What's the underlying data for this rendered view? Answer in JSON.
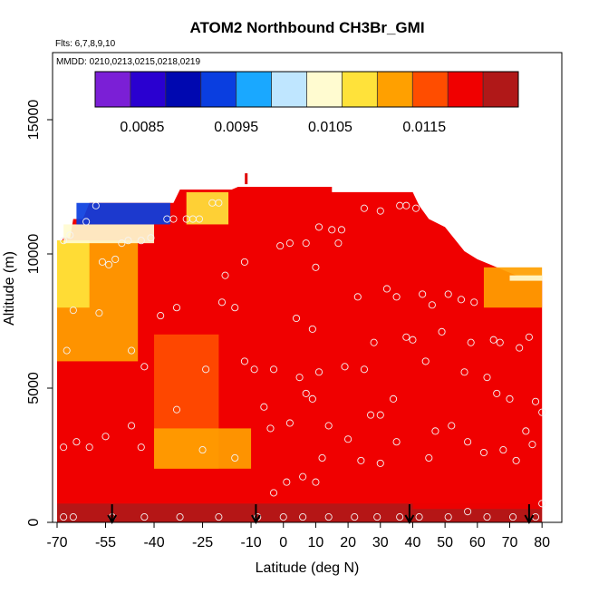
{
  "chart_data": {
    "type": "heatmap",
    "title": "ATOM2 Northbound CH3Br_GMI",
    "subtitle_flights": "Flts: 6,7,8,9,10",
    "subtitle_dates": "MMDD: 0210,0213,0215,0218,0219",
    "xlabel": "Latitude (deg N)",
    "ylabel": "Altitude (m)",
    "xlim": [
      -70,
      85
    ],
    "ylim": [
      0,
      17500
    ],
    "x_ticks": [
      -70,
      -55,
      -40,
      -25,
      -10,
      0,
      10,
      20,
      30,
      40,
      50,
      60,
      70,
      80
    ],
    "x_tick_labels": [
      "-70",
      "-55",
      "-40",
      "-25",
      "-10",
      "0",
      "10",
      "20",
      "30",
      "40",
      "50",
      "60",
      "70",
      "80"
    ],
    "y_ticks": [
      0,
      5000,
      10000,
      15000
    ],
    "y_tick_labels": [
      "0",
      "5000",
      "10000",
      "15000"
    ],
    "colorbar": {
      "min": 0.008,
      "max": 0.0125,
      "tick_values": [
        0.0085,
        0.0095,
        0.0105,
        0.0115
      ],
      "tick_labels": [
        "0.0085",
        "0.0095",
        "0.0105",
        "0.0115"
      ],
      "colors": [
        "#7b1fd6",
        "#2a00d0",
        "#0008b0",
        "#0a3ee0",
        "#1aa8ff",
        "#bfe6ff",
        "#fffbd0",
        "#ffe23a",
        "#ffa000",
        "#ff4d00",
        "#f00000",
        "#b01818"
      ]
    },
    "heatmap_background_value": 0.0119,
    "regions": [
      {
        "x": [
          -70,
          80
        ],
        "y": [
          0,
          700
        ],
        "value": 0.0123
      },
      {
        "x": [
          -40,
          -20
        ],
        "y": [
          2000,
          7000
        ],
        "value": 0.0114
      },
      {
        "x": [
          -40,
          -10
        ],
        "y": [
          2000,
          3500
        ],
        "value": 0.0112
      },
      {
        "x": [
          -70,
          -45
        ],
        "y": [
          6000,
          10500
        ],
        "value": 0.0113
      },
      {
        "x": [
          -70,
          -60
        ],
        "y": [
          8000,
          10500
        ],
        "value": 0.011
      },
      {
        "x": [
          -68,
          -40
        ],
        "y": [
          10400,
          11100
        ],
        "value": 0.0104
      },
      {
        "x": [
          -64,
          -35
        ],
        "y": [
          11100,
          11900
        ],
        "value": 0.0092
      },
      {
        "x": [
          -30,
          -17
        ],
        "y": [
          11100,
          12300
        ],
        "value": 0.0108
      },
      {
        "x": [
          62,
          80
        ],
        "y": [
          8000,
          9500
        ],
        "value": 0.0112
      },
      {
        "x": [
          70,
          80
        ],
        "y": [
          9000,
          9200
        ],
        "value": 0.0104
      },
      {
        "x": [
          40,
          80
        ],
        "y": [
          500,
          4000
        ],
        "value": 0.0121
      }
    ],
    "obs_points": [
      {
        "x": -68,
        "y": 10500
      },
      {
        "x": -66,
        "y": 10700
      },
      {
        "x": -61,
        "y": 11200
      },
      {
        "x": -58,
        "y": 11800
      },
      {
        "x": -56,
        "y": 9700
      },
      {
        "x": -54,
        "y": 9600
      },
      {
        "x": -52,
        "y": 9800
      },
      {
        "x": -50,
        "y": 10400
      },
      {
        "x": -48,
        "y": 10500
      },
      {
        "x": -44,
        "y": 10500
      },
      {
        "x": -41,
        "y": 10600
      },
      {
        "x": -36,
        "y": 11300
      },
      {
        "x": -34,
        "y": 11300
      },
      {
        "x": -30,
        "y": 11300
      },
      {
        "x": -28,
        "y": 11300
      },
      {
        "x": -26,
        "y": 11300
      },
      {
        "x": -22,
        "y": 11900
      },
      {
        "x": -20,
        "y": 11900
      },
      {
        "x": -18,
        "y": 9200
      },
      {
        "x": -12,
        "y": 9700
      },
      {
        "x": -67,
        "y": 6400
      },
      {
        "x": -65,
        "y": 7900
      },
      {
        "x": -57,
        "y": 7800
      },
      {
        "x": -47,
        "y": 6400
      },
      {
        "x": -43,
        "y": 5800
      },
      {
        "x": -38,
        "y": 7700
      },
      {
        "x": -33,
        "y": 8000
      },
      {
        "x": -24,
        "y": 5700
      },
      {
        "x": -19,
        "y": 8200
      },
      {
        "x": -15,
        "y": 8000
      },
      {
        "x": -12,
        "y": 6000
      },
      {
        "x": -9,
        "y": 5700
      },
      {
        "x": -68,
        "y": 2800
      },
      {
        "x": -64,
        "y": 3000
      },
      {
        "x": -60,
        "y": 2800
      },
      {
        "x": -55,
        "y": 3200
      },
      {
        "x": -47,
        "y": 3600
      },
      {
        "x": -44,
        "y": 2800
      },
      {
        "x": -33,
        "y": 4200
      },
      {
        "x": -25,
        "y": 2700
      },
      {
        "x": -15,
        "y": 2400
      },
      {
        "x": -6,
        "y": 4300
      },
      {
        "x": -4,
        "y": 3500
      },
      {
        "x": 2,
        "y": 3700
      },
      {
        "x": 5,
        "y": 5400
      },
      {
        "x": 7,
        "y": 4800
      },
      {
        "x": 9,
        "y": 4600
      },
      {
        "x": 11,
        "y": 5600
      },
      {
        "x": 14,
        "y": 3600
      },
      {
        "x": 19,
        "y": 5800
      },
      {
        "x": 20,
        "y": 3100
      },
      {
        "x": 25,
        "y": 5700
      },
      {
        "x": 27,
        "y": 4000
      },
      {
        "x": 30,
        "y": 4000
      },
      {
        "x": 34,
        "y": 4600
      },
      {
        "x": 38,
        "y": 6900
      },
      {
        "x": 40,
        "y": 6800
      },
      {
        "x": 44,
        "y": 6000
      },
      {
        "x": 47,
        "y": 3400
      },
      {
        "x": 52,
        "y": 3600
      },
      {
        "x": 56,
        "y": 5600
      },
      {
        "x": 58,
        "y": 6700
      },
      {
        "x": 63,
        "y": 5400
      },
      {
        "x": 65,
        "y": 6800
      },
      {
        "x": 67,
        "y": 6700
      },
      {
        "x": 70,
        "y": 4600
      },
      {
        "x": 73,
        "y": 6500
      },
      {
        "x": 76,
        "y": 6900
      },
      {
        "x": 78,
        "y": 4500
      },
      {
        "x": 80,
        "y": 4100
      },
      {
        "x": 66,
        "y": 4800
      },
      {
        "x": 62,
        "y": 2600
      },
      {
        "x": 57,
        "y": 3000
      },
      {
        "x": 68,
        "y": 2700
      },
      {
        "x": 72,
        "y": 2300
      },
      {
        "x": 75,
        "y": 3400
      },
      {
        "x": 77,
        "y": 2900
      },
      {
        "x": 2,
        "y": 10400
      },
      {
        "x": 7,
        "y": 10400
      },
      {
        "x": 11,
        "y": 11000
      },
      {
        "x": 15,
        "y": 10900
      },
      {
        "x": 18,
        "y": 10900
      },
      {
        "x": 10,
        "y": 9500
      },
      {
        "x": 4,
        "y": 7600
      },
      {
        "x": 9,
        "y": 7200
      },
      {
        "x": 17,
        "y": 10400
      },
      {
        "x": 23,
        "y": 8400
      },
      {
        "x": 28,
        "y": 6700
      },
      {
        "x": 32,
        "y": 8700
      },
      {
        "x": 35,
        "y": 8400
      },
      {
        "x": 43,
        "y": 8500
      },
      {
        "x": 46,
        "y": 8100
      },
      {
        "x": 51,
        "y": 8500
      },
      {
        "x": 55,
        "y": 8300
      },
      {
        "x": 49,
        "y": 7100
      },
      {
        "x": 59,
        "y": 8200
      },
      {
        "x": 25,
        "y": 11700
      },
      {
        "x": 30,
        "y": 11600
      },
      {
        "x": 38,
        "y": 11800
      },
      {
        "x": 41,
        "y": 11700
      },
      {
        "x": 36,
        "y": 11800
      },
      {
        "x": -1,
        "y": 10300
      },
      {
        "x": -3,
        "y": 5700
      },
      {
        "x": 6,
        "y": 1700
      },
      {
        "x": 1,
        "y": 1500
      },
      {
        "x": -3,
        "y": 1100
      },
      {
        "x": 10,
        "y": 1500
      },
      {
        "x": 12,
        "y": 2400
      },
      {
        "x": 24,
        "y": 2300
      },
      {
        "x": 30,
        "y": 2200
      },
      {
        "x": 35,
        "y": 3000
      },
      {
        "x": 45,
        "y": 2400
      },
      {
        "x": -68,
        "y": 200
      },
      {
        "x": -65,
        "y": 200
      },
      {
        "x": -53,
        "y": 200
      },
      {
        "x": -43,
        "y": 200
      },
      {
        "x": -32,
        "y": 200
      },
      {
        "x": -20,
        "y": 200
      },
      {
        "x": -8,
        "y": 200
      },
      {
        "x": 0,
        "y": 200
      },
      {
        "x": 6,
        "y": 200
      },
      {
        "x": 14,
        "y": 200
      },
      {
        "x": 22,
        "y": 200
      },
      {
        "x": 29,
        "y": 200
      },
      {
        "x": 36,
        "y": 200
      },
      {
        "x": 42,
        "y": 200
      },
      {
        "x": 51,
        "y": 200
      },
      {
        "x": 57,
        "y": 400
      },
      {
        "x": 63,
        "y": 200
      },
      {
        "x": 71,
        "y": 200
      },
      {
        "x": 78,
        "y": 200
      },
      {
        "x": 80,
        "y": 700
      }
    ],
    "arrows_x": [
      -53,
      -8.5,
      39,
      76
    ],
    "red_marker": {
      "x": -11.5,
      "y": 12700
    }
  }
}
